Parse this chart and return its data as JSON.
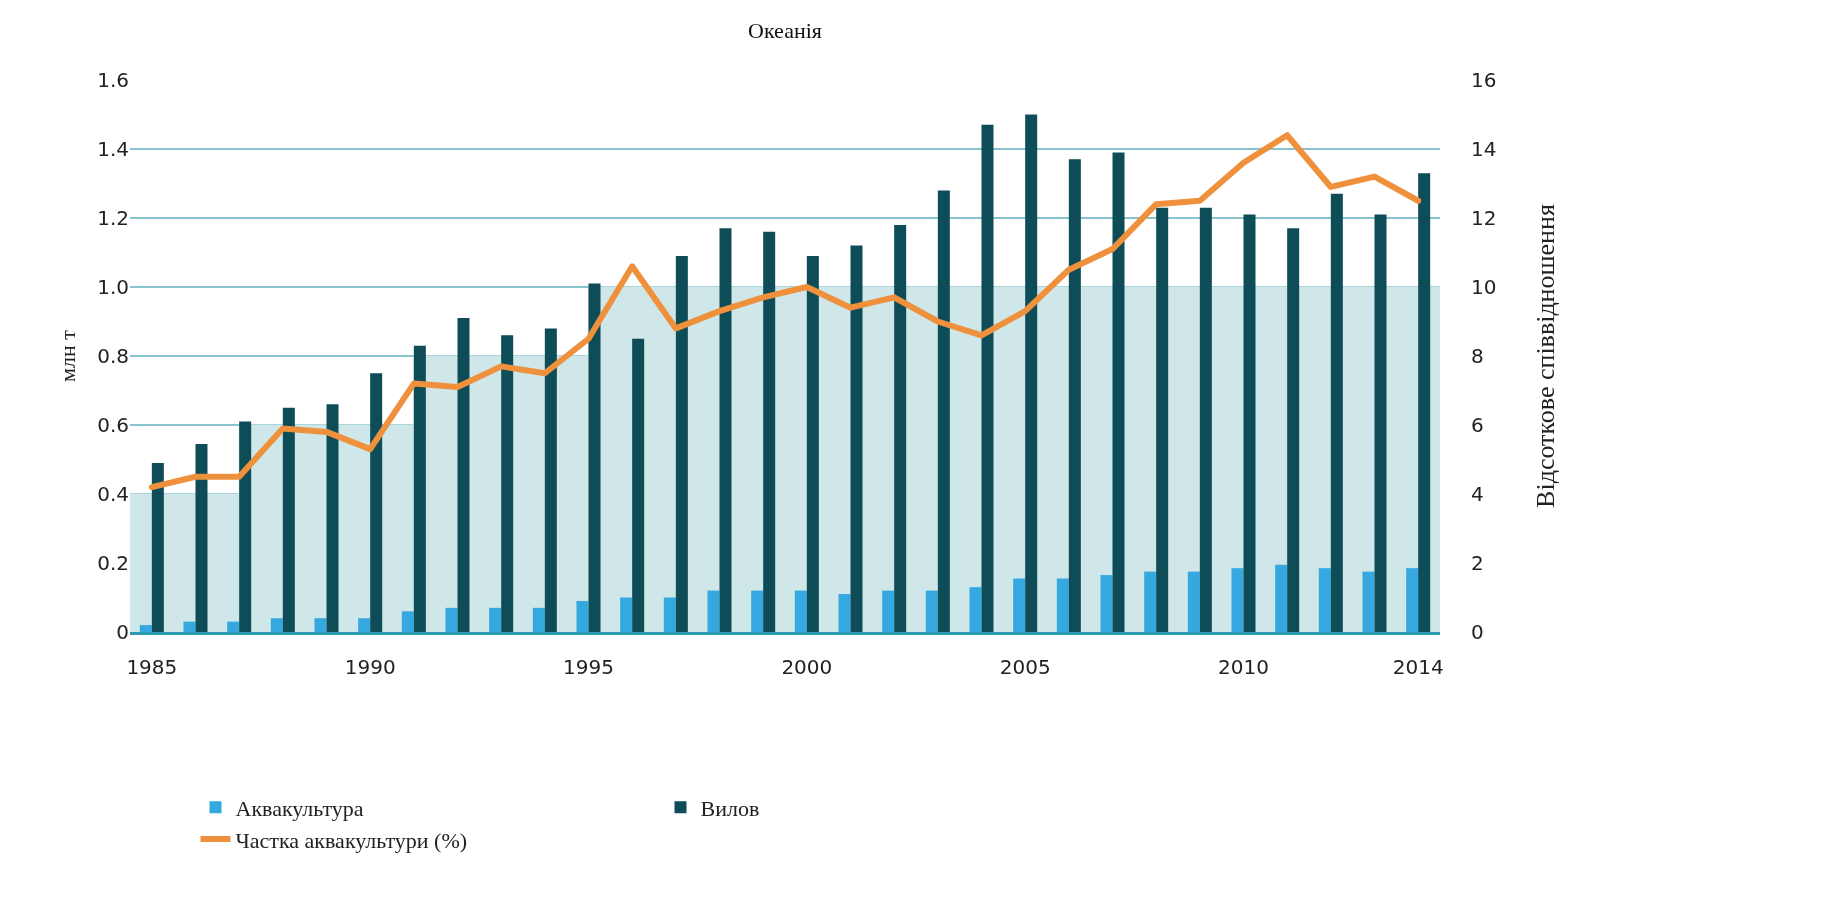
{
  "chart_data": {
    "type": "bar",
    "title": "Океанія",
    "ylabel": "млн т",
    "y2label": "Відсоткове співвідношення",
    "x": [
      1985,
      1986,
      1987,
      1988,
      1989,
      1990,
      1991,
      1992,
      1993,
      1994,
      1995,
      1996,
      1997,
      1998,
      1999,
      2000,
      2001,
      2002,
      2003,
      2004,
      2005,
      2006,
      2007,
      2008,
      2009,
      2010,
      2011,
      2012,
      2013,
      2014
    ],
    "series": [
      {
        "type": "area",
        "color": "#cfe7e8",
        "x": [
          1984.5,
          1987,
          1987,
          1991,
          1991,
          1995,
          1995,
          2014.5
        ],
        "values": [
          0.4,
          0.4,
          0.6,
          0.6,
          0.8,
          0.8,
          1.0,
          1.0
        ]
      },
      {
        "name": "Аквакультура",
        "color": "#35a8e0",
        "values": [
          0.02,
          0.03,
          0.03,
          0.04,
          0.04,
          0.04,
          0.06,
          0.07,
          0.07,
          0.07,
          0.09,
          0.1,
          0.1,
          0.12,
          0.12,
          0.12,
          0.11,
          0.12,
          0.12,
          0.13,
          0.155,
          0.155,
          0.165,
          0.175,
          0.175,
          0.185,
          0.195,
          0.185,
          0.175,
          0.185
        ]
      },
      {
        "name": "Вилов",
        "color": "#0e4d57",
        "values": [
          0.49,
          0.545,
          0.61,
          0.65,
          0.66,
          0.75,
          0.83,
          0.91,
          0.86,
          0.88,
          1.01,
          0.85,
          1.09,
          1.17,
          1.16,
          1.09,
          1.12,
          1.18,
          1.28,
          1.47,
          1.5,
          1.37,
          1.39,
          1.23,
          1.23,
          1.21,
          1.17,
          1.27,
          1.21,
          1.33
        ]
      },
      {
        "name": "Частка аквакультури (%)",
        "type": "line",
        "axis": "y2",
        "color": "#ef913c",
        "values": [
          4.2,
          4.5,
          4.5,
          5.9,
          5.8,
          5.3,
          7.2,
          7.1,
          7.7,
          7.5,
          8.5,
          10.6,
          8.8,
          9.3,
          9.7,
          10.0,
          9.4,
          9.7,
          9.0,
          8.6,
          9.3,
          10.5,
          11.1,
          12.4,
          12.5,
          13.6,
          14.4,
          12.9,
          13.2,
          12.5
        ]
      }
    ],
    "xlim": [
      1984.5,
      2014.5
    ],
    "xticks": [
      1985,
      1990,
      1995,
      2000,
      2005,
      2010,
      2014
    ],
    "ylim": [
      0,
      1.6
    ],
    "yticks": [
      0,
      0.2,
      0.4,
      0.6,
      0.8,
      {
        "value": 1,
        "label": "1.0"
      },
      1.2,
      1.4,
      1.6
    ],
    "y2lim": [
      0,
      16
    ],
    "y2ticks": [
      0,
      2,
      4,
      6,
      8,
      10,
      12,
      14,
      16
    ],
    "grid": "y",
    "legend": "bottom left",
    "marker": "none",
    "line_style": "solid"
  }
}
